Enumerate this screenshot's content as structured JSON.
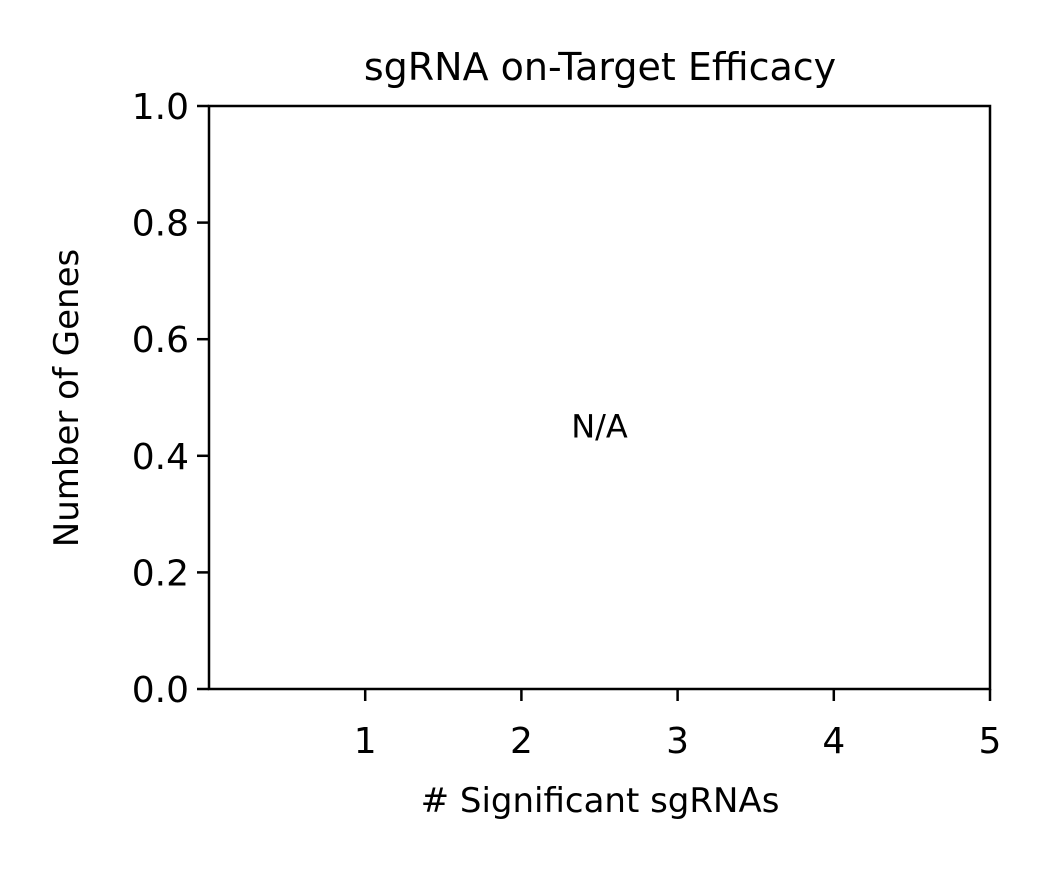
{
  "chart_data": {
    "type": "bar",
    "title": "sgRNA on-Target Efficacy",
    "xlabel": "# Significant sgRNAs",
    "ylabel": "Number of Genes",
    "xlim": [
      0,
      5
    ],
    "ylim": [
      0.0,
      1.0
    ],
    "x_ticks": [
      1,
      2,
      3,
      4,
      5
    ],
    "x_tick_labels": [
      "1",
      "2",
      "3",
      "4",
      "5"
    ],
    "y_ticks": [
      0.0,
      0.2,
      0.4,
      0.6,
      0.8,
      1.0
    ],
    "y_tick_labels": [
      "0.0",
      "0.2",
      "0.4",
      "0.6",
      "0.8",
      "1.0"
    ],
    "categories": [],
    "values": [],
    "annotation": {
      "text": "N/A",
      "x": 2.5,
      "y": 0.45
    },
    "grid": false,
    "colors": {
      "axis": "#000000",
      "background": "#ffffff"
    }
  }
}
